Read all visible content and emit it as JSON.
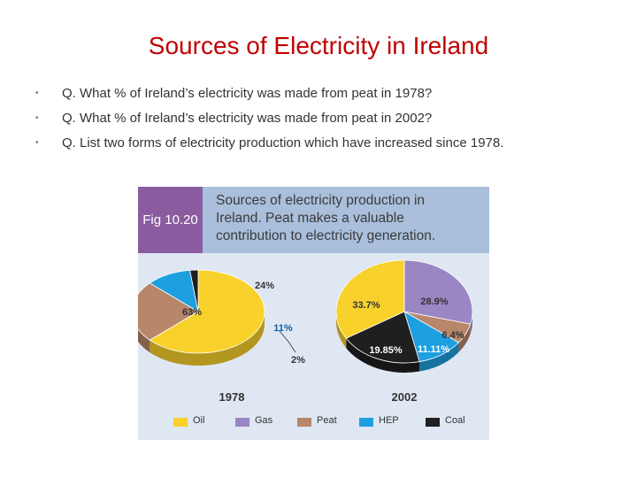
{
  "slide": {
    "title": "Sources of Electricity in Ireland",
    "bullets": [
      "Q. What % of Ireland’s electricity was made from peat in 1978?",
      "Q. What % of Ireland’s electricity was made from peat in 2002?",
      "Q. List two forms of electricity production which have increased since 1978."
    ],
    "bullet_glyph": "•"
  },
  "figure": {
    "label": "Fig 10.20",
    "caption_lines": [
      "Sources of electricity production in",
      "Ireland. Peat makes a valuable",
      "contribution to electricity generation."
    ]
  },
  "chart_data": [
    {
      "type": "pie",
      "title": "1978",
      "labels": [
        "Oil",
        "Peat",
        "HEP",
        "Coal"
      ],
      "values": [
        63,
        24,
        11,
        2
      ],
      "value_labels": [
        "63%",
        "24%",
        "11%",
        "2%"
      ],
      "colors": [
        "#f9d12b",
        "#b8866a",
        "#1e9fe0",
        "#1f1f1f"
      ]
    },
    {
      "type": "pie",
      "title": "2002",
      "labels": [
        "Gas",
        "Peat",
        "HEP",
        "Coal",
        "Oil"
      ],
      "values": [
        28.9,
        6.4,
        11.11,
        19.85,
        33.7
      ],
      "value_labels": [
        "28.9%",
        "6.4%",
        "11.11%",
        "19.85%",
        "33.7%"
      ],
      "colors": [
        "#9b86c4",
        "#b8866a",
        "#1e9fe0",
        "#1f1f1f",
        "#f9d12b"
      ]
    }
  ],
  "legend": [
    {
      "label": "Oil",
      "color": "#f9d12b"
    },
    {
      "label": "Gas",
      "color": "#9b86c4"
    },
    {
      "label": "Peat",
      "color": "#b8866a"
    },
    {
      "label": "HEP",
      "color": "#1e9fe0"
    },
    {
      "label": "Coal",
      "color": "#1f1f1f"
    }
  ]
}
